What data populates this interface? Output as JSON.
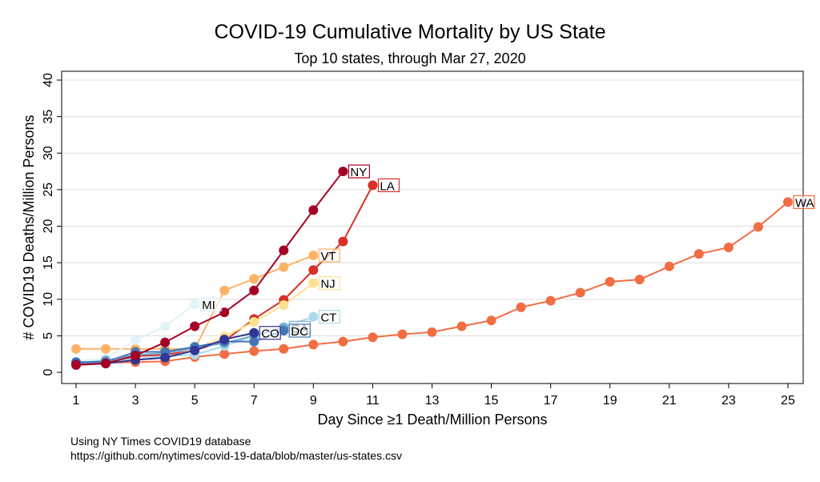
{
  "chart_data": {
    "type": "line",
    "title": "COVID-19 Cumulative Mortality by US State",
    "subtitle": "Top 10 states, through Mar 27, 2020",
    "xlabel": "Day Since ≥1 Death/Million Persons",
    "ylabel": "# COVID19 Deaths/Million Persons",
    "xlim": [
      1,
      26
    ],
    "ylim": [
      0,
      40
    ],
    "xticks": [
      1,
      3,
      5,
      7,
      9,
      11,
      13,
      15,
      17,
      19,
      21,
      23,
      25
    ],
    "yticks": [
      0,
      5,
      10,
      15,
      20,
      25,
      30,
      35,
      40
    ],
    "grid": "horizontal",
    "legend": "none",
    "series": [
      {
        "name": "WA",
        "color": "#f16d43",
        "x": [
          1,
          2,
          3,
          4,
          5,
          6,
          7,
          8,
          9,
          10,
          11,
          12,
          13,
          14,
          15,
          16,
          17,
          18,
          19,
          20,
          21,
          22,
          23,
          24,
          25
        ],
        "y": [
          1.3,
          1.3,
          1.4,
          1.5,
          2.1,
          2.5,
          2.9,
          3.2,
          3.8,
          4.2,
          4.8,
          5.2,
          5.5,
          6.3,
          7.1,
          8.9,
          9.8,
          10.9,
          12.4,
          12.7,
          14.5,
          16.2,
          17.1,
          19.9,
          23.3
        ]
      },
      {
        "name": "VT",
        "color": "#fdb366",
        "x": [
          1,
          2,
          3,
          4,
          5,
          6,
          7,
          8,
          9
        ],
        "y": [
          3.2,
          3.2,
          3.2,
          3.2,
          3.2,
          11.2,
          12.8,
          14.4,
          16.0
        ]
      },
      {
        "name": "LA",
        "color": "#d73027",
        "x": [
          1,
          2,
          3,
          4,
          5,
          6,
          7,
          8,
          9,
          10,
          11
        ],
        "y": [
          1.1,
          1.3,
          2.2,
          2.4,
          3.0,
          4.3,
          7.3,
          9.9,
          14.0,
          17.9,
          25.6
        ]
      },
      {
        "name": "NJ",
        "color": "#fee090",
        "x": [
          1,
          2,
          3,
          4,
          5,
          6,
          7,
          8,
          9
        ],
        "y": [
          1.2,
          1.4,
          1.7,
          2.0,
          3.1,
          4.9,
          6.9,
          9.2,
          12.2
        ]
      },
      {
        "name": "MI",
        "color": "#e0f3f8",
        "x": [
          1,
          2,
          3,
          4,
          5
        ],
        "y": [
          1.5,
          1.9,
          4.4,
          6.3,
          9.3
        ]
      },
      {
        "name": "CT",
        "color": "#abd9e9",
        "x": [
          1,
          2,
          3,
          4,
          5,
          6,
          7,
          8,
          9
        ],
        "y": [
          1.1,
          1.7,
          1.8,
          2.2,
          2.4,
          3.6,
          5.0,
          6.2,
          7.6
        ]
      },
      {
        "name": "GA",
        "color": "#74add1",
        "x": [
          1,
          2,
          3,
          4,
          5,
          6,
          7,
          8
        ],
        "y": [
          1.3,
          1.6,
          2.4,
          2.6,
          3.3,
          4.0,
          5.0,
          6.1
        ]
      },
      {
        "name": "DC",
        "color": "#4575b4",
        "x": [
          1,
          2,
          3,
          4,
          5,
          6,
          7,
          8
        ],
        "y": [
          1.4,
          1.4,
          2.8,
          2.8,
          3.5,
          4.2,
          4.2,
          5.7
        ]
      },
      {
        "name": "CO",
        "color": "#313695",
        "x": [
          1,
          2,
          3,
          4,
          5,
          6,
          7
        ],
        "y": [
          1.1,
          1.2,
          1.7,
          2.0,
          3.0,
          4.5,
          5.4
        ]
      },
      {
        "name": "NY",
        "color": "#a50026",
        "x": [
          1,
          2,
          3,
          4,
          5,
          6,
          7,
          8,
          9,
          10
        ],
        "y": [
          1.0,
          1.2,
          2.3,
          4.1,
          6.3,
          8.2,
          11.2,
          16.7,
          22.2,
          27.5
        ]
      }
    ]
  },
  "source": {
    "line1": "Using NY Times COVID19 database",
    "line2": "https://github.com/nytimes/covid-19-data/blob/master/us-states.csv"
  }
}
